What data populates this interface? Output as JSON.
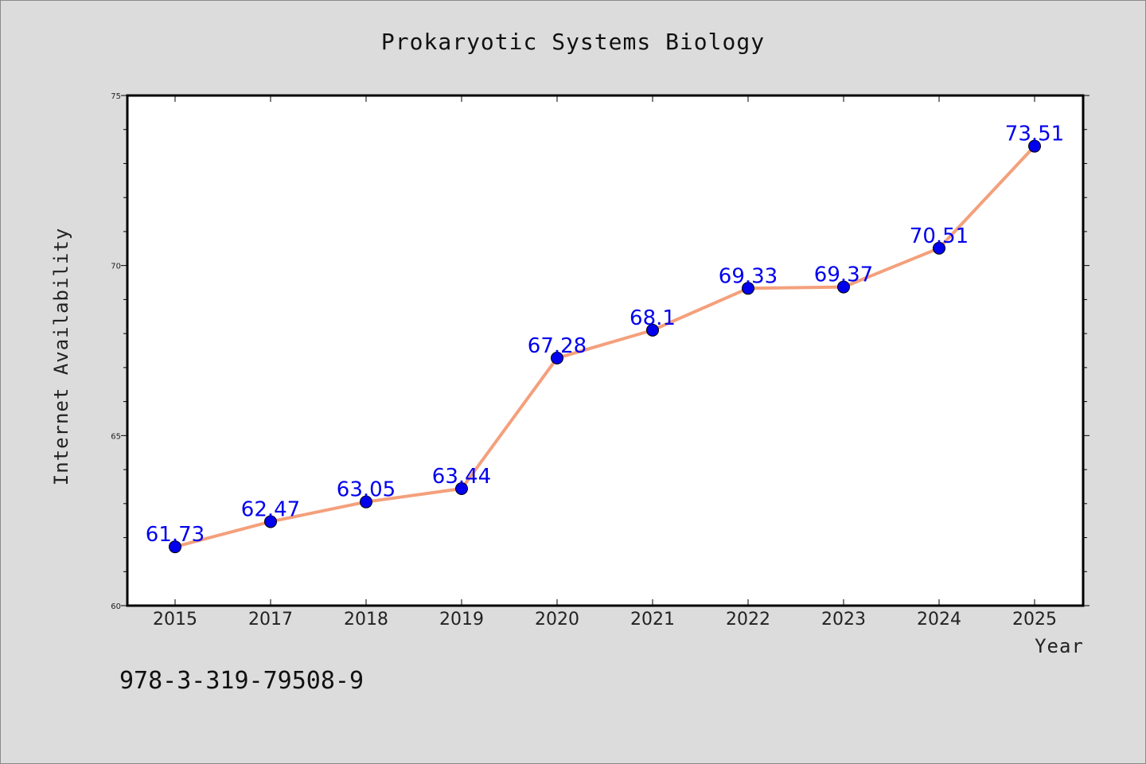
{
  "chart_data": {
    "type": "line",
    "title": "Prokaryotic Systems Biology",
    "xlabel": "Year",
    "ylabel": "Internet Availability",
    "categories": [
      "2015",
      "2017",
      "2018",
      "2019",
      "2020",
      "2021",
      "2022",
      "2023",
      "2024",
      "2025"
    ],
    "series": [
      {
        "values": [
          61.73,
          62.47,
          63.05,
          63.44,
          67.28,
          68.1,
          69.33,
          69.37,
          70.51,
          73.51
        ],
        "data_labels": [
          "61.73",
          "62.47",
          "63.05",
          "63.44",
          "67.28",
          "68.1",
          "69.33",
          "69.37",
          "70.51",
          "73.51"
        ],
        "line_color": "#f4a07c",
        "marker_color": "#0000ee"
      }
    ],
    "ylim": [
      60,
      75
    ],
    "yticks": [
      "60",
      "65",
      "70",
      "75"
    ],
    "grid": false,
    "legend": "none"
  },
  "footer_text": "978-3-319-79508-9"
}
